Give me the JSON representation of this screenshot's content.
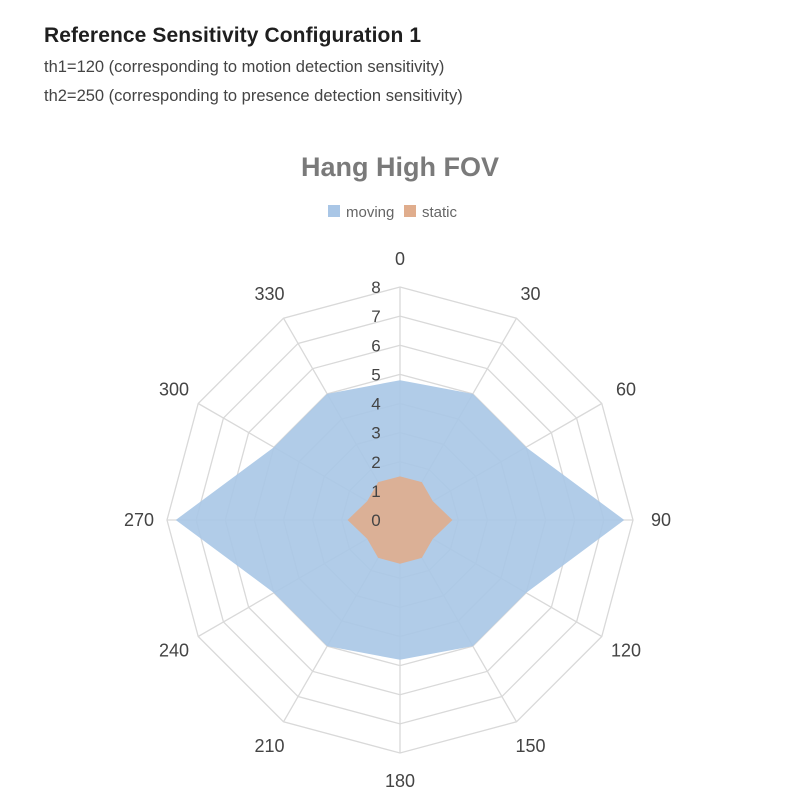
{
  "header": {
    "title": "Reference Sensitivity Configuration 1",
    "line1": "th1=120 (corresponding to motion detection sensitivity)",
    "line2": "th2=250 (corresponding to presence detection sensitivity)"
  },
  "chart_data": {
    "type": "radar",
    "title": "Hang High FOV",
    "legend_position": "top",
    "angles": [
      "0",
      "30",
      "60",
      "90",
      "120",
      "150",
      "180",
      "210",
      "240",
      "270",
      "300",
      "330"
    ],
    "radial_ticks": [
      "0",
      "1",
      "2",
      "3",
      "4",
      "5",
      "6",
      "7",
      "8"
    ],
    "rlim": [
      0,
      8
    ],
    "grid": true,
    "series": [
      {
        "name": "moving",
        "color": "#a9c6e6",
        "values": [
          4.8,
          5.0,
          5.0,
          7.7,
          5.0,
          5.0,
          4.8,
          5.0,
          5.0,
          7.7,
          5.0,
          5.0
        ]
      },
      {
        "name": "static",
        "color": "#e0ad8d",
        "values": [
          1.5,
          1.5,
          1.3,
          1.8,
          1.3,
          1.5,
          1.5,
          1.5,
          1.3,
          1.8,
          1.3,
          1.5
        ]
      }
    ]
  }
}
